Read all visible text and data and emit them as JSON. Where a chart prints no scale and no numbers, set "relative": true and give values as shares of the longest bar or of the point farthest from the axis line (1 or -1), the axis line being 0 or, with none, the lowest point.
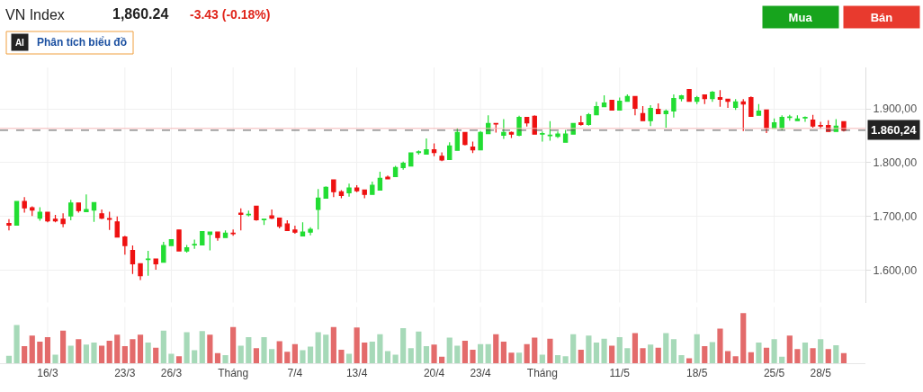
{
  "chart_data": [
    {
      "type": "candlestick",
      "title": "VN Index",
      "annotations": [
        "1,860.24",
        "-3.43 (-0.18%)",
        "AI",
        "Phân tích biểu đồ",
        "Mua",
        "Bán"
      ],
      "categories": [
        null,
        null,
        null,
        null,
        null,
        null,
        null,
        null,
        null,
        null,
        null,
        null,
        null,
        null,
        null,
        null,
        null,
        null,
        null,
        null,
        null,
        null,
        null,
        null,
        null,
        null,
        null,
        null,
        null,
        null,
        null,
        null,
        null,
        null,
        null,
        null,
        null,
        null,
        null,
        null,
        null,
        null,
        null,
        null,
        null,
        null,
        null,
        null,
        null,
        null,
        null,
        null,
        null,
        null,
        null,
        null,
        null,
        null,
        null,
        null,
        null,
        null,
        null,
        null,
        null,
        null,
        null,
        null,
        null,
        null,
        null,
        null,
        null,
        null,
        null,
        null,
        null,
        null,
        null,
        null,
        null,
        null,
        null,
        null,
        null,
        null,
        null,
        null,
        null,
        null,
        null,
        null,
        null,
        null,
        null,
        null,
        null,
        null,
        null,
        null,
        null,
        null,
        null,
        null,
        null,
        null,
        null,
        null,
        null
      ],
      "ohlc": [
        [
          1687,
          1695,
          1674,
          1684
        ],
        [
          1684,
          1728,
          1683,
          1728
        ],
        [
          1728,
          1736,
          1707,
          1716
        ],
        [
          1716,
          1719,
          1701,
          1712
        ],
        [
          1697,
          1717,
          1692,
          1708
        ],
        [
          1708,
          1708,
          1689,
          1692
        ],
        [
          1695,
          1703,
          1689,
          1692
        ],
        [
          1695,
          1706,
          1680,
          1687
        ],
        [
          1701,
          1731,
          1693,
          1725
        ],
        [
          1725,
          1725,
          1707,
          1711
        ],
        [
          1709,
          1741,
          1709,
          1713
        ],
        [
          1712,
          1726,
          1690,
          1726
        ],
        [
          1705,
          1713,
          1695,
          1697
        ],
        [
          1696,
          1709,
          1675,
          1695
        ],
        [
          1690,
          1700,
          1662,
          1662
        ],
        [
          1662,
          1664,
          1629,
          1646
        ],
        [
          1637,
          1646,
          1593,
          1612
        ],
        [
          1612,
          1612,
          1582,
          1590
        ],
        [
          1620,
          1636,
          1590,
          1621
        ],
        [
          1621,
          1621,
          1601,
          1612
        ],
        [
          1615,
          1653,
          1615,
          1646
        ],
        [
          1646,
          1657,
          1645,
          1657
        ],
        [
          1675,
          1676,
          1636,
          1636
        ],
        [
          1636,
          1647,
          1633,
          1642
        ],
        [
          1647,
          1657,
          1640,
          1648
        ],
        [
          1647,
          1672,
          1647,
          1672
        ],
        [
          1667,
          1671,
          1637,
          1671
        ],
        [
          1671,
          1671,
          1655,
          1661
        ],
        [
          1661,
          1674,
          1661,
          1669
        ],
        [
          1669,
          1676,
          1664,
          1668
        ],
        [
          1706,
          1715,
          1674,
          1704
        ],
        [
          1703,
          1711,
          1700,
          1704
        ],
        [
          1719,
          1719,
          1692,
          1694
        ],
        [
          1694,
          1695,
          1684,
          1695
        ],
        [
          1701,
          1713,
          1695,
          1697
        ],
        [
          1697,
          1697,
          1678,
          1682
        ],
        [
          1686,
          1693,
          1674,
          1674
        ],
        [
          1675,
          1683,
          1668,
          1671
        ],
        [
          1664,
          1689,
          1664,
          1671
        ],
        [
          1671,
          1680,
          1665,
          1676
        ],
        [
          1713,
          1751,
          1676,
          1734
        ],
        [
          1734,
          1756,
          1734,
          1754
        ],
        [
          1768,
          1768,
          1736,
          1746
        ],
        [
          1746,
          1749,
          1734,
          1739
        ],
        [
          1744,
          1761,
          1737,
          1753
        ],
        [
          1753,
          1758,
          1745,
          1748
        ],
        [
          1749,
          1749,
          1734,
          1741
        ],
        [
          1741,
          1765,
          1741,
          1758
        ],
        [
          1749,
          1783,
          1749,
          1771
        ],
        [
          1773,
          1776,
          1769,
          1770
        ],
        [
          1774,
          1794,
          1774,
          1791
        ],
        [
          1791,
          1802,
          1787,
          1799
        ],
        [
          1794,
          1819,
          1794,
          1818
        ],
        [
          1819,
          1823,
          1815,
          1820
        ],
        [
          1816,
          1845,
          1815,
          1824
        ],
        [
          1824,
          1836,
          1812,
          1819
        ],
        [
          1812,
          1819,
          1803,
          1805
        ],
        [
          1806,
          1838,
          1806,
          1831
        ],
        [
          1823,
          1864,
          1823,
          1856
        ],
        [
          1856,
          1856,
          1832,
          1834
        ],
        [
          1829,
          1839,
          1818,
          1824
        ],
        [
          1824,
          1859,
          1823,
          1856
        ],
        [
          1854,
          1888,
          1854,
          1873
        ],
        [
          1873,
          1874,
          1856,
          1872
        ],
        [
          1851,
          1881,
          1844,
          1856
        ],
        [
          1856,
          1858,
          1846,
          1853
        ],
        [
          1851,
          1887,
          1849,
          1884
        ],
        [
          1884,
          1884,
          1867,
          1874
        ],
        [
          1886,
          1888,
          1853,
          1853
        ],
        [
          1853,
          1858,
          1839,
          1854
        ],
        [
          1850,
          1877,
          1841,
          1851
        ],
        [
          1849,
          1858,
          1846,
          1853
        ],
        [
          1838,
          1861,
          1838,
          1853
        ],
        [
          1853,
          1874,
          1853,
          1873
        ],
        [
          1874,
          1887,
          1869,
          1871
        ],
        [
          1871,
          1892,
          1869,
          1889
        ],
        [
          1889,
          1913,
          1889,
          1904
        ],
        [
          1904,
          1925,
          1903,
          1911
        ],
        [
          1916,
          1916,
          1898,
          1898
        ],
        [
          1898,
          1921,
          1898,
          1914
        ],
        [
          1914,
          1927,
          1914,
          1923
        ],
        [
          1923,
          1923,
          1888,
          1901
        ],
        [
          1891,
          1905,
          1878,
          1878
        ],
        [
          1878,
          1907,
          1868,
          1901
        ],
        [
          1899,
          1910,
          1891,
          1891
        ],
        [
          1891,
          1899,
          1865,
          1896
        ],
        [
          1896,
          1927,
          1884,
          1919
        ],
        [
          1919,
          1926,
          1914,
          1924
        ],
        [
          1936,
          1936,
          1914,
          1914
        ],
        [
          1914,
          1924,
          1909,
          1921
        ],
        [
          1926,
          1926,
          1909,
          1919
        ],
        [
          1919,
          1933,
          1913,
          1931
        ],
        [
          1921,
          1935,
          1904,
          1918
        ],
        [
          1918,
          1919,
          1902,
          1914
        ],
        [
          1903,
          1918,
          1898,
          1913
        ],
        [
          1913,
          1918,
          1859,
          1909
        ],
        [
          1921,
          1923,
          1886,
          1886
        ],
        [
          1888,
          1909,
          1888,
          1896
        ],
        [
          1898,
          1898,
          1855,
          1864
        ],
        [
          1864,
          1882,
          1863,
          1874
        ],
        [
          1864,
          1888,
          1860,
          1884
        ],
        [
          1884,
          1889,
          1878,
          1885
        ],
        [
          1878,
          1888,
          1878,
          1881
        ],
        [
          1883,
          1886,
          1876,
          1884
        ],
        [
          1879,
          1889,
          1865,
          1868
        ],
        [
          1869,
          1876,
          1863,
          1868
        ],
        [
          1869,
          1879,
          1858,
          1858
        ],
        [
          1858,
          1881,
          1858,
          1868
        ],
        [
          1876,
          1876,
          1858,
          1860.24
        ]
      ],
      "colors": [
        "#ee1111",
        "#22dd33",
        "#ee1111",
        "#ee1111",
        "#22dd33",
        "#ee1111",
        "#ee1111",
        "#ee1111",
        "#22dd33",
        "#ee1111",
        "#22dd33",
        "#22dd33",
        "#ee1111",
        "#ee1111",
        "#ee1111",
        "#ee1111",
        "#ee1111",
        "#ee1111",
        "#22dd33",
        "#ee1111",
        "#22dd33",
        "#22dd33",
        "#ee1111",
        "#22dd33",
        "#22dd33",
        "#22dd33",
        "#22dd33",
        "#ee1111",
        "#22dd33",
        "#ee1111",
        "#ee1111",
        "#22dd33",
        "#ee1111",
        "#22dd33",
        "#ee1111",
        "#ee1111",
        "#ee1111",
        "#ee1111",
        "#22dd33",
        "#22dd33",
        "#22dd33",
        "#22dd33",
        "#ee1111",
        "#ee1111",
        "#22dd33",
        "#ee1111",
        "#ee1111",
        "#22dd33",
        "#22dd33",
        "#ee1111",
        "#22dd33",
        "#22dd33",
        "#22dd33",
        "#22dd33",
        "#22dd33",
        "#ee1111",
        "#ee1111",
        "#22dd33",
        "#22dd33",
        "#ee1111",
        "#ee1111",
        "#22dd33",
        "#22dd33",
        "#ee1111",
        "#22dd33",
        "#ee1111",
        "#22dd33",
        "#ee1111",
        "#ee1111",
        "#22dd33",
        "#22dd33",
        "#22dd33",
        "#22dd33",
        "#22dd33",
        "#ee1111",
        "#22dd33",
        "#22dd33",
        "#22dd33",
        "#ee1111",
        "#22dd33",
        "#22dd33",
        "#ee1111",
        "#ee1111",
        "#22dd33",
        "#ee1111",
        "#22dd33",
        "#22dd33",
        "#22dd33",
        "#ee1111",
        "#22dd33",
        "#ee1111",
        "#22dd33",
        "#ee1111",
        "#ee1111",
        "#22dd33",
        "#ee1111",
        "#ee1111",
        "#22dd33",
        "#ee1111",
        "#22dd33",
        "#22dd33",
        "#22dd33",
        "#22dd33",
        "#22dd33",
        "#ee1111",
        "#ee1111",
        "#ee1111",
        "#22dd33",
        "#ee1111"
      ],
      "ylim": [
        1540,
        1977
      ],
      "yticks": [
        {
          "value": 1600,
          "label": "1.600,00"
        },
        {
          "value": 1700,
          "label": "1.700,00"
        },
        {
          "value": 1800,
          "label": "1.800,00"
        },
        {
          "value": 1900,
          "label": "1.900,00"
        }
      ],
      "ref_lines": [
        {
          "axis": "y",
          "value": 1863.7,
          "color": "#f4b8b8",
          "line_style": "solid"
        },
        {
          "axis": "y",
          "value": 1860.24,
          "label": "1.860,24",
          "color": "#555555",
          "line_style": "dashed"
        }
      ],
      "grid": true,
      "tick_labels": "y"
    },
    {
      "type": "bar",
      "relative": true,
      "grid": "x",
      "tick_labels": "x",
      "categories": [
        null,
        null,
        null,
        null,
        null,
        "16/3",
        null,
        null,
        null,
        null,
        null,
        null,
        null,
        null,
        null,
        "23/3",
        null,
        null,
        null,
        null,
        null,
        "26/3",
        null,
        null,
        null,
        null,
        null,
        null,
        null,
        "Tháng",
        null,
        null,
        null,
        null,
        null,
        null,
        null,
        "7/4",
        null,
        null,
        null,
        null,
        null,
        null,
        null,
        "13/4",
        null,
        null,
        null,
        null,
        null,
        null,
        null,
        null,
        null,
        "20/4",
        null,
        null,
        null,
        null,
        null,
        "23/4",
        null,
        null,
        null,
        null,
        null,
        null,
        null,
        "Tháng",
        null,
        null,
        null,
        null,
        null,
        null,
        null,
        null,
        null,
        "11/5",
        null,
        null,
        null,
        null,
        null,
        null,
        null,
        null,
        null,
        "18/5",
        null,
        null,
        null,
        null,
        null,
        null,
        null,
        null,
        null,
        "25/5",
        null,
        null,
        null,
        null,
        null,
        "28/5",
        null,
        null,
        null
      ],
      "values": [
        0.15,
        0.76,
        0.34,
        0.55,
        0.43,
        0.52,
        0.17,
        0.65,
        0.35,
        0.48,
        0.37,
        0.41,
        0.35,
        0.45,
        0.57,
        0.34,
        0.48,
        0.57,
        0.41,
        0.31,
        0.65,
        0.19,
        0.14,
        0.62,
        0.26,
        0.64,
        0.57,
        0.2,
        0.16,
        0.72,
        0.35,
        0.52,
        0.3,
        0.52,
        0.28,
        0.44,
        0.23,
        0.38,
        0.26,
        0.33,
        0.62,
        0.57,
        0.72,
        0.27,
        0.19,
        0.71,
        0.41,
        0.43,
        0.58,
        0.24,
        0.17,
        0.7,
        0.3,
        0.63,
        0.34,
        0.37,
        0.13,
        0.51,
        0.35,
        0.45,
        0.27,
        0.38,
        0.38,
        0.58,
        0.43,
        0.21,
        0.21,
        0.38,
        0.51,
        0.17,
        0.49,
        0.16,
        0.14,
        0.58,
        0.27,
        0.55,
        0.41,
        0.49,
        0.35,
        0.52,
        0.3,
        0.6,
        0.3,
        0.37,
        0.31,
        0.6,
        0.48,
        0.16,
        0.1,
        0.58,
        0.34,
        0.42,
        0.69,
        0.24,
        0.14,
        1,
        0.22,
        0.41,
        0.31,
        0.48,
        0.13,
        0.55,
        0.28,
        0.41,
        0.3,
        0.48,
        0.28,
        0.36,
        0.2
      ],
      "colors": [
        "#a6d9b8",
        "#a6d9b8",
        "#e36b6b",
        "#e36b6b",
        "#e36b6b",
        "#e36b6b",
        "#a6d9b8",
        "#e36b6b",
        "#a6d9b8",
        "#e36b6b",
        "#a6d9b8",
        "#a6d9b8",
        "#e36b6b",
        "#e36b6b",
        "#e36b6b",
        "#e36b6b",
        "#e36b6b",
        "#e36b6b",
        "#a6d9b8",
        "#e36b6b",
        "#a6d9b8",
        "#a6d9b8",
        "#e36b6b",
        "#a6d9b8",
        "#a6d9b8",
        "#a6d9b8",
        "#e36b6b",
        "#e36b6b",
        "#a6d9b8",
        "#e36b6b",
        "#a6d9b8",
        "#a6d9b8",
        "#e36b6b",
        "#a6d9b8",
        "#a6d9b8",
        "#e36b6b",
        "#e36b6b",
        "#e36b6b",
        "#a6d9b8",
        "#a6d9b8",
        "#a6d9b8",
        "#a6d9b8",
        "#e36b6b",
        "#e36b6b",
        "#a6d9b8",
        "#e36b6b",
        "#e36b6b",
        "#a6d9b8",
        "#a6d9b8",
        "#a6d9b8",
        "#a6d9b8",
        "#a6d9b8",
        "#a6d9b8",
        "#a6d9b8",
        "#a6d9b8",
        "#e36b6b",
        "#e36b6b",
        "#a6d9b8",
        "#a6d9b8",
        "#e36b6b",
        "#e36b6b",
        "#a6d9b8",
        "#a6d9b8",
        "#e36b6b",
        "#e36b6b",
        "#e36b6b",
        "#a6d9b8",
        "#e36b6b",
        "#e36b6b",
        "#a6d9b8",
        "#e36b6b",
        "#a6d9b8",
        "#a6d9b8",
        "#a6d9b8",
        "#e36b6b",
        "#a6d9b8",
        "#a6d9b8",
        "#a6d9b8",
        "#e36b6b",
        "#a6d9b8",
        "#a6d9b8",
        "#e36b6b",
        "#e36b6b",
        "#a6d9b8",
        "#e36b6b",
        "#a6d9b8",
        "#a6d9b8",
        "#a6d9b8",
        "#e36b6b",
        "#a6d9b8",
        "#e36b6b",
        "#a6d9b8",
        "#e36b6b",
        "#e36b6b",
        "#e36b6b",
        "#e36b6b",
        "#e36b6b",
        "#a6d9b8",
        "#e36b6b",
        "#a6d9b8",
        "#a6d9b8",
        "#e36b6b",
        "#e36b6b",
        "#a6d9b8",
        "#e36b6b",
        "#a6d9b8",
        "#e36b6b",
        "#a6d9b8",
        "#e36b6b"
      ]
    }
  ]
}
